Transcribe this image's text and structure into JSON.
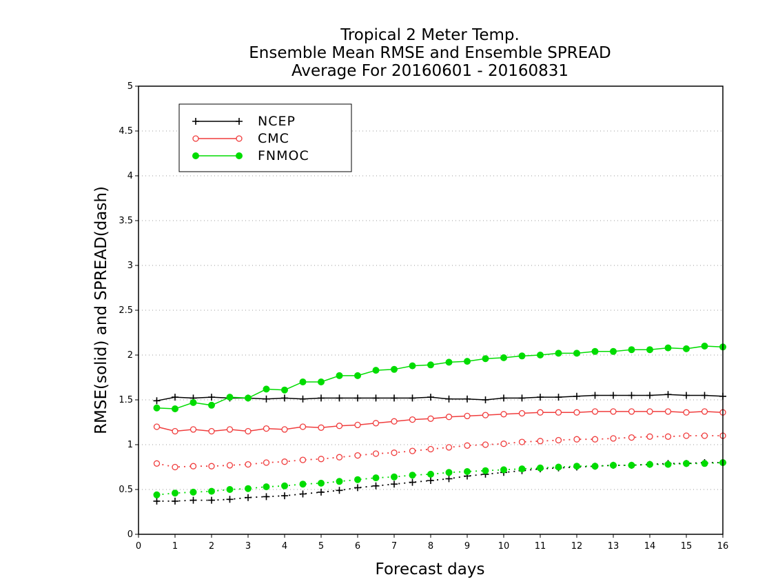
{
  "chart_data": {
    "type": "line",
    "title_lines": [
      "Tropical 2 Meter Temp.",
      "Ensemble Mean RMSE and Ensemble SPREAD",
      "Average For 20160601 - 20160831"
    ],
    "xlabel": "Forecast days",
    "ylabel": "RMSE(solid) and SPREAD(dash)",
    "xlim": [
      0,
      16
    ],
    "ylim": [
      0,
      5
    ],
    "x_ticks": [
      "0",
      "1",
      "2",
      "3",
      "4",
      "5",
      "6",
      "7",
      "8",
      "9",
      "10",
      "11",
      "12",
      "13",
      "14",
      "15",
      "16"
    ],
    "y_ticks": [
      "0",
      "0.5",
      "1",
      "1.5",
      "2",
      "2.5",
      "3",
      "3.5",
      "4",
      "4.5",
      "5"
    ],
    "grid": "horizontal dotted",
    "legend_position": "top-left",
    "x": [
      0.5,
      1,
      1.5,
      2,
      2.5,
      3,
      3.5,
      4,
      4.5,
      5,
      5.5,
      6,
      6.5,
      7,
      7.5,
      8,
      8.5,
      9,
      9.5,
      10,
      10.5,
      11,
      11.5,
      12,
      12.5,
      13,
      13.5,
      14,
      14.5,
      15,
      15.5,
      16
    ],
    "series": [
      {
        "name": "NCEP",
        "color": "#000000",
        "marker": "plus",
        "rmse": [
          1.49,
          1.53,
          1.52,
          1.53,
          1.52,
          1.52,
          1.51,
          1.52,
          1.51,
          1.52,
          1.52,
          1.52,
          1.52,
          1.52,
          1.52,
          1.53,
          1.51,
          1.51,
          1.5,
          1.52,
          1.52,
          1.53,
          1.53,
          1.54,
          1.55,
          1.55,
          1.55,
          1.55,
          1.56,
          1.55,
          1.55,
          1.54
        ],
        "spread": [
          0.37,
          0.37,
          0.38,
          0.38,
          0.39,
          0.41,
          0.42,
          0.43,
          0.45,
          0.47,
          0.49,
          0.52,
          0.54,
          0.56,
          0.58,
          0.6,
          0.62,
          0.65,
          0.67,
          0.69,
          0.71,
          0.73,
          0.74,
          0.75,
          0.76,
          0.77,
          0.77,
          0.78,
          0.79,
          0.79,
          0.8,
          0.8
        ]
      },
      {
        "name": "CMC",
        "color": "#f03c3c",
        "marker": "open-circle",
        "rmse": [
          1.2,
          1.15,
          1.17,
          1.15,
          1.17,
          1.15,
          1.18,
          1.17,
          1.2,
          1.19,
          1.21,
          1.22,
          1.24,
          1.26,
          1.28,
          1.29,
          1.31,
          1.32,
          1.33,
          1.34,
          1.35,
          1.36,
          1.36,
          1.36,
          1.37,
          1.37,
          1.37,
          1.37,
          1.37,
          1.36,
          1.37,
          1.36
        ],
        "spread": [
          0.79,
          0.75,
          0.76,
          0.76,
          0.77,
          0.78,
          0.8,
          0.81,
          0.83,
          0.84,
          0.86,
          0.88,
          0.9,
          0.91,
          0.93,
          0.95,
          0.97,
          0.99,
          1.0,
          1.01,
          1.03,
          1.04,
          1.05,
          1.06,
          1.06,
          1.07,
          1.08,
          1.09,
          1.09,
          1.1,
          1.1,
          1.1
        ]
      },
      {
        "name": "FNMOC",
        "color": "#00dc00",
        "marker": "filled-circle",
        "rmse": [
          1.41,
          1.4,
          1.47,
          1.44,
          1.53,
          1.52,
          1.62,
          1.61,
          1.7,
          1.7,
          1.77,
          1.77,
          1.83,
          1.84,
          1.88,
          1.89,
          1.92,
          1.93,
          1.96,
          1.97,
          1.99,
          2.0,
          2.02,
          2.02,
          2.04,
          2.04,
          2.06,
          2.06,
          2.08,
          2.07,
          2.1,
          2.09
        ],
        "spread": [
          0.44,
          0.46,
          0.47,
          0.48,
          0.5,
          0.51,
          0.53,
          0.54,
          0.56,
          0.57,
          0.59,
          0.61,
          0.63,
          0.64,
          0.66,
          0.67,
          0.69,
          0.7,
          0.71,
          0.72,
          0.73,
          0.74,
          0.75,
          0.76,
          0.76,
          0.77,
          0.77,
          0.78,
          0.78,
          0.79,
          0.79,
          0.8
        ]
      }
    ]
  }
}
